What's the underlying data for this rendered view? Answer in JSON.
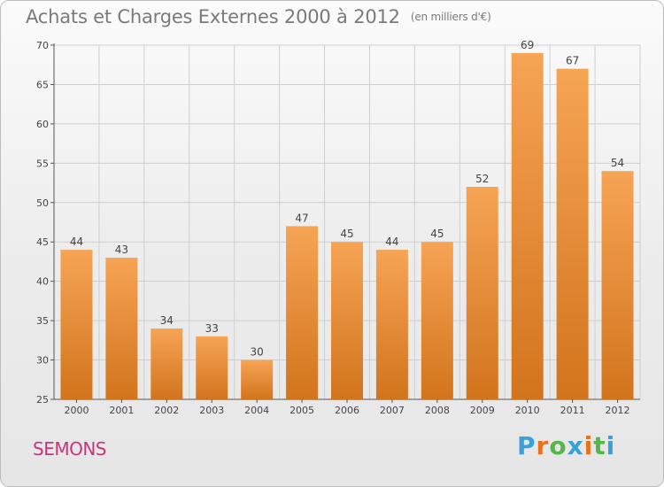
{
  "header": {
    "title": "Achats et Charges Externes 2000 à 2012",
    "unit": "(en milliers d'€)"
  },
  "footer": {
    "commune": "SEMONS",
    "logo_letters": [
      "P",
      "r",
      "o",
      "x",
      "i",
      "t",
      "i"
    ],
    "logo_colors": [
      "#3aa0d8",
      "#e8731c",
      "#55b64a",
      "#3aa0d8",
      "#e8731c",
      "#55b64a",
      "#3aa0d8"
    ]
  },
  "colors": {
    "bar_top": "#f6a455",
    "bar_bottom": "#d2741c",
    "grid": "#cfcfcf",
    "title": "#7a7a7a",
    "commune": "#c8357d"
  },
  "chart_data": {
    "type": "bar",
    "categories": [
      "2000",
      "2001",
      "2002",
      "2003",
      "2004",
      "2005",
      "2006",
      "2007",
      "2008",
      "2009",
      "2010",
      "2011",
      "2012"
    ],
    "values": [
      44,
      43,
      34,
      33,
      30,
      47,
      45,
      44,
      45,
      52,
      69,
      67,
      54
    ],
    "title": "Achats et Charges Externes 2000 à 2012",
    "xlabel": "",
    "ylabel": "",
    "ylim": [
      25,
      70
    ],
    "yticks": [
      25,
      30,
      35,
      40,
      45,
      50,
      55,
      60,
      65,
      70
    ],
    "grid": true,
    "data_labels": true
  }
}
